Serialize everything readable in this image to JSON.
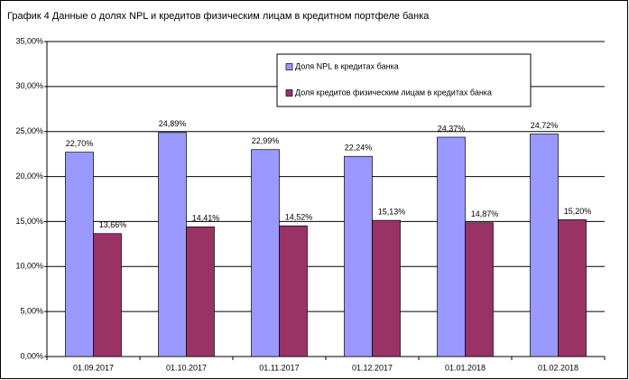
{
  "chart_data": {
    "type": "bar",
    "title": "График 4 Данные о долях NPL и кредитов физическим лицам в кредитном портфеле банка",
    "categories": [
      "01.09.2017",
      "01.10.2017",
      "01.11.2017",
      "01.12.2017",
      "01.01.2018",
      "01.02.2018"
    ],
    "series": [
      {
        "name": "Доля NPL в кредитах банка",
        "color": "#9999ff",
        "values": [
          22.7,
          24.89,
          22.99,
          22.24,
          24.37,
          24.72
        ],
        "value_labels": [
          "22,70%",
          "24,89%",
          "22,99%",
          "22,24%",
          "24,37%",
          "24,72%"
        ]
      },
      {
        "name": "Доля кредитов физическим лицам в кредитах банка",
        "color": "#993366",
        "values": [
          13.66,
          14.41,
          14.52,
          15.13,
          14.87,
          15.2
        ],
        "value_labels": [
          "13,66%",
          "14,41%",
          "14,52%",
          "15,13%",
          "14,87%",
          "15,20%"
        ]
      }
    ],
    "ylim": [
      0,
      35
    ],
    "yticks": [
      {
        "value": 0,
        "label": "0,00%"
      },
      {
        "value": 5,
        "label": "5,00%"
      },
      {
        "value": 10,
        "label": "10,00%"
      },
      {
        "value": 15,
        "label": "15,00%"
      },
      {
        "value": 20,
        "label": "20,00%"
      },
      {
        "value": 25,
        "label": "25,00%"
      },
      {
        "value": 30,
        "label": "30,00%"
      },
      {
        "value": 35,
        "label": "35,00%"
      }
    ],
    "grid": true
  }
}
